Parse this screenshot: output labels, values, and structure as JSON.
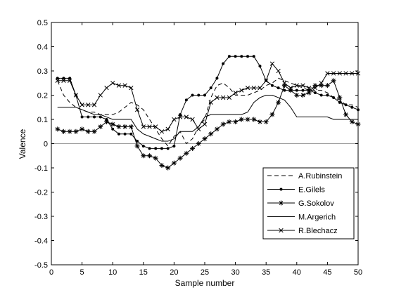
{
  "chart_data": {
    "type": "line",
    "title": "",
    "xlabel": "Sample number",
    "ylabel": "Valence",
    "xlim": [
      0,
      50
    ],
    "ylim": [
      -0.5,
      0.5
    ],
    "xticks": [
      "0",
      "5",
      "10",
      "15",
      "20",
      "25",
      "30",
      "35",
      "40",
      "45",
      "50"
    ],
    "yticks": [
      "-0.5",
      "-0.4",
      "-0.3",
      "-0.2",
      "-0.1",
      "0",
      "0.1",
      "0.2",
      "0.3",
      "0.4",
      "0.5"
    ],
    "grid": false,
    "zero_line": true,
    "legend": "bottom-right",
    "x": [
      1,
      2,
      3,
      4,
      5,
      6,
      7,
      8,
      9,
      10,
      11,
      12,
      13,
      14,
      15,
      16,
      17,
      18,
      19,
      20,
      21,
      22,
      23,
      24,
      25,
      26,
      27,
      28,
      29,
      30,
      31,
      32,
      33,
      34,
      35,
      36,
      37,
      38,
      39,
      40,
      41,
      42,
      43,
      44,
      45,
      46,
      47,
      48,
      49,
      50
    ],
    "series": [
      {
        "name": "A.Rubinstein",
        "style": "dashed",
        "marker": "none",
        "values": [
          0.26,
          0.2,
          0.17,
          0.15,
          0.14,
          0.13,
          0.13,
          0.12,
          0.12,
          0.12,
          0.13,
          0.15,
          0.17,
          0.16,
          0.14,
          0.1,
          0.06,
          0.02,
          -0.01,
          0.03,
          0.05,
          0.0,
          0.02,
          0.07,
          0.1,
          0.19,
          0.24,
          0.25,
          0.23,
          0.2,
          0.2,
          0.2,
          0.21,
          0.22,
          0.24,
          0.25,
          0.27,
          0.26,
          0.25,
          0.24,
          0.23,
          0.22,
          0.22,
          0.22,
          0.21,
          0.19,
          0.18,
          0.16,
          0.16,
          0.15
        ]
      },
      {
        "name": "E.Gilels",
        "style": "solid",
        "marker": "dot",
        "values": [
          0.27,
          0.27,
          0.27,
          0.2,
          0.11,
          0.11,
          0.11,
          0.11,
          0.1,
          0.06,
          0.04,
          0.04,
          0.04,
          0.01,
          -0.01,
          -0.02,
          -0.02,
          -0.02,
          -0.02,
          -0.01,
          0.12,
          0.18,
          0.2,
          0.2,
          0.2,
          0.23,
          0.27,
          0.33,
          0.36,
          0.36,
          0.36,
          0.36,
          0.36,
          0.32,
          0.26,
          0.24,
          0.23,
          0.22,
          0.22,
          0.22,
          0.22,
          0.22,
          0.21,
          0.2,
          0.2,
          0.19,
          0.17,
          0.16,
          0.15,
          0.14
        ]
      },
      {
        "name": "G.Sokolov",
        "style": "solid",
        "marker": "star",
        "values": [
          0.06,
          0.05,
          0.05,
          0.05,
          0.06,
          0.05,
          0.05,
          0.07,
          0.09,
          0.08,
          0.07,
          0.07,
          0.07,
          -0.01,
          -0.05,
          -0.05,
          -0.06,
          -0.09,
          -0.1,
          -0.08,
          -0.06,
          -0.04,
          -0.02,
          0.0,
          0.02,
          0.04,
          0.06,
          0.08,
          0.09,
          0.09,
          0.1,
          0.1,
          0.1,
          0.09,
          0.09,
          0.12,
          0.17,
          0.24,
          0.22,
          0.2,
          0.2,
          0.21,
          0.24,
          0.24,
          0.24,
          0.26,
          0.19,
          0.12,
          0.09,
          0.08
        ]
      },
      {
        "name": "M.Argerich",
        "style": "solid",
        "marker": "none",
        "values": [
          0.15,
          0.15,
          0.15,
          0.15,
          0.14,
          0.13,
          0.12,
          0.12,
          0.11,
          0.1,
          0.1,
          0.1,
          0.1,
          0.06,
          0.04,
          0.03,
          0.02,
          0.01,
          0.01,
          0.02,
          0.05,
          0.05,
          0.05,
          0.07,
          0.11,
          0.12,
          0.12,
          0.12,
          0.12,
          0.12,
          0.12,
          0.13,
          0.17,
          0.19,
          0.2,
          0.2,
          0.19,
          0.18,
          0.15,
          0.11,
          0.11,
          0.11,
          0.11,
          0.11,
          0.11,
          0.1,
          0.1,
          0.1,
          0.1,
          0.1
        ]
      },
      {
        "name": "R.Blechacz",
        "style": "solid",
        "marker": "x",
        "values": [
          0.26,
          0.26,
          0.26,
          0.2,
          0.16,
          0.16,
          0.16,
          0.2,
          0.23,
          0.25,
          0.24,
          0.24,
          0.23,
          0.14,
          0.07,
          0.07,
          0.07,
          0.05,
          0.06,
          0.1,
          0.11,
          0.11,
          0.1,
          0.06,
          0.08,
          0.17,
          0.19,
          0.19,
          0.19,
          0.21,
          0.22,
          0.23,
          0.23,
          0.23,
          0.26,
          0.33,
          0.3,
          0.25,
          0.23,
          0.24,
          0.24,
          0.23,
          0.23,
          0.25,
          0.29,
          0.29,
          0.29,
          0.29,
          0.29,
          0.29
        ]
      }
    ]
  }
}
